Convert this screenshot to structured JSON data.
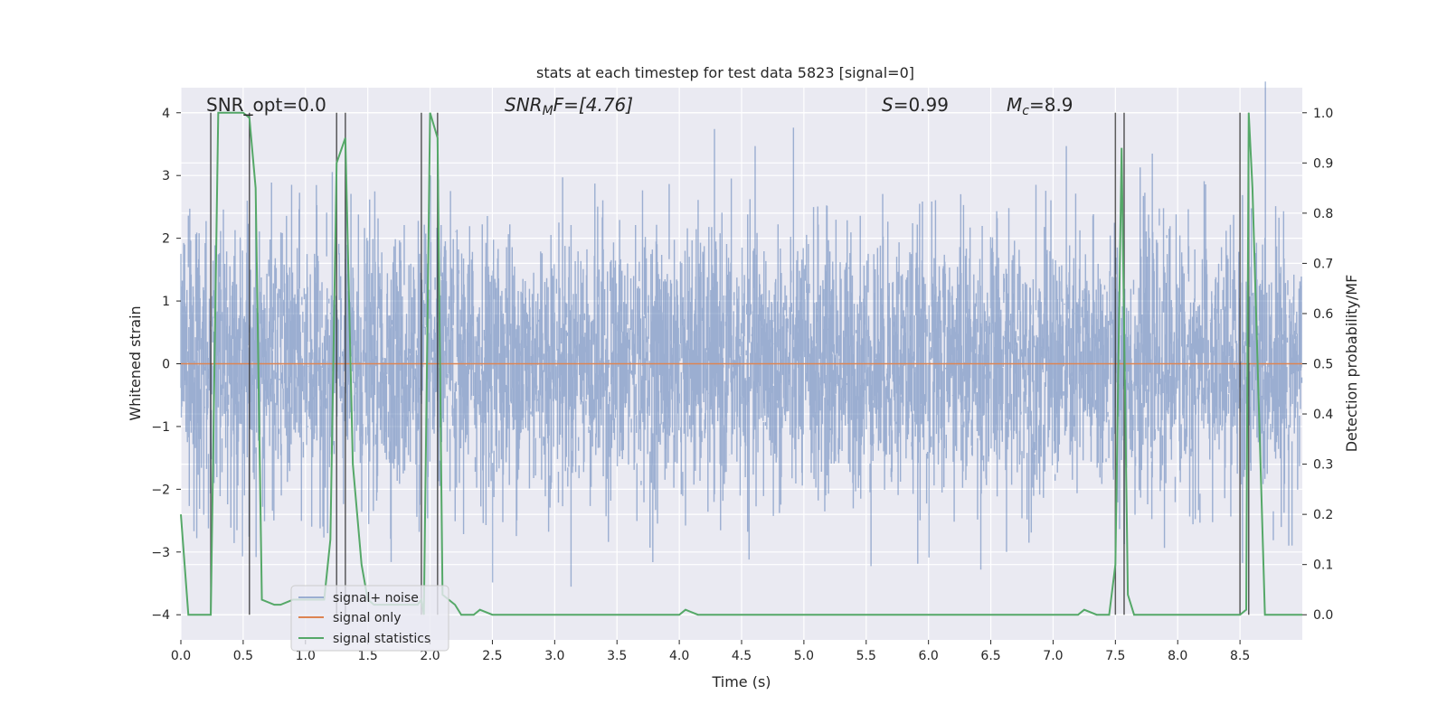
{
  "chart_data": {
    "type": "line",
    "title": "stats at each timestep for test data 5823 [signal=0]",
    "xlabel": "Time (s)",
    "ylabel": "Whitened strain",
    "ylabel_right": "Detection probability/MF",
    "xlim": [
      0.0,
      9.0
    ],
    "ylim": [
      -4.4,
      4.4
    ],
    "ylim_right": [
      -0.05,
      1.05
    ],
    "x_ticks": [
      "0.0",
      "0.5",
      "1.0",
      "1.5",
      "2.0",
      "2.5",
      "3.0",
      "3.5",
      "4.0",
      "4.5",
      "5.0",
      "5.5",
      "6.0",
      "6.5",
      "7.0",
      "7.5",
      "8.0",
      "8.5"
    ],
    "y_ticks": [
      "4",
      "3",
      "2",
      "1",
      "0",
      "−1",
      "−2",
      "−3",
      "−4"
    ],
    "y_ticks_right": [
      "1.0",
      "0.9",
      "0.8",
      "0.7",
      "0.6",
      "0.5",
      "0.4",
      "0.3",
      "0.2",
      "0.1",
      "0.0"
    ],
    "grid": true,
    "annotations": {
      "snr_opt": "SNR_opt=0.0",
      "snr_mf_label": "SNR",
      "snr_mf_sub": "M",
      "snr_mf_rest": "F=[4.76]",
      "s_label": "S",
      "s_value": "=0.99",
      "mc_label": "M",
      "mc_sub": "c",
      "mc_value": "=8.9"
    },
    "legend": {
      "placement": "lower-left",
      "entries": [
        "signal+ noise",
        "signal only",
        "signal statistics"
      ]
    },
    "series": [
      {
        "name": "signal+ noise",
        "color": "#4c72b0",
        "description": "whitened strain noise, approx. unit variance, 2048 Hz",
        "envelope_std": 1.0
      },
      {
        "name": "signal only",
        "color": "#dd8452",
        "values_constant": 0.0
      },
      {
        "name": "signal statistics",
        "color": "#55a868",
        "axis": "right",
        "x": [
          0.0,
          0.06,
          0.2,
          0.24,
          0.3,
          0.5,
          0.55,
          0.6,
          0.65,
          0.75,
          0.8,
          0.9,
          1.0,
          1.15,
          1.2,
          1.25,
          1.32,
          1.38,
          1.45,
          1.5,
          1.55,
          1.9,
          1.93,
          1.95,
          2.0,
          2.06,
          2.1,
          2.2,
          2.25,
          2.3,
          2.35,
          2.4,
          2.5,
          4.0,
          4.05,
          4.15,
          7.2,
          7.25,
          7.35,
          7.45,
          7.5,
          7.55,
          7.6,
          7.65,
          7.7,
          8.5,
          8.55,
          8.57,
          8.6,
          8.7,
          9.0
        ],
        "values": [
          0.2,
          0.0,
          0.0,
          0.0,
          1.0,
          1.0,
          0.99,
          0.85,
          0.03,
          0.02,
          0.02,
          0.03,
          0.03,
          0.03,
          0.15,
          0.9,
          0.95,
          0.3,
          0.1,
          0.03,
          0.02,
          0.02,
          0.03,
          0.0,
          1.0,
          0.95,
          0.04,
          0.02,
          0.0,
          0.0,
          0.0,
          0.01,
          0.0,
          0.0,
          0.01,
          0.0,
          0.0,
          0.01,
          0.0,
          0.0,
          0.1,
          0.93,
          0.04,
          0.0,
          0.0,
          0.0,
          0.01,
          1.0,
          0.85,
          0.0,
          0.0
        ]
      }
    ],
    "vertical_markers": [
      0.24,
      0.55,
      1.25,
      1.32,
      1.93,
      2.06,
      7.5,
      7.57,
      8.5,
      8.57
    ]
  }
}
